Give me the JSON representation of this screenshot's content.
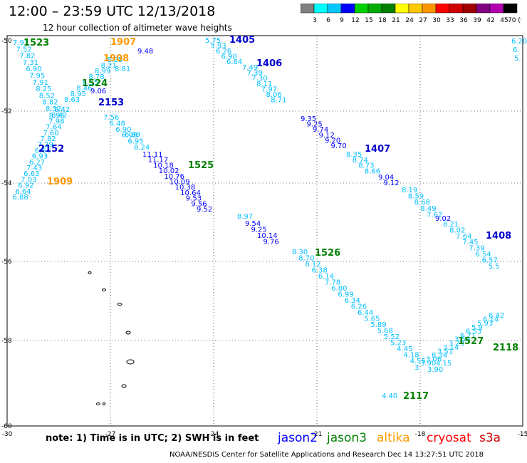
{
  "title": "12:00 – 23:59 UTC 12/13/2018",
  "subtitle": "12 hour collection of altimeter wave heights",
  "color_scale": {
    "ticks": [
      "3",
      "6",
      "9",
      "12",
      "15",
      "18",
      "21",
      "24",
      "27",
      "30",
      "33",
      "36",
      "39",
      "42",
      "45",
      "70 (ft)"
    ],
    "colors": [
      "#808080",
      "#00ffff",
      "#00c8ff",
      "#0000ff",
      "#00d000",
      "#00aa00",
      "#008000",
      "#ffff00",
      "#ffc800",
      "#ff9600",
      "#ff0000",
      "#d00000",
      "#a00000",
      "#800080",
      "#b000b0",
      "#000000"
    ]
  },
  "map": {
    "longitudes": [
      "-30",
      "-27",
      "-24",
      "-21",
      "-18",
      "-15"
    ],
    "latitudes": [
      "-50",
      "-52",
      "-54",
      "-56",
      "-58",
      "-60"
    ]
  },
  "tracks": [
    {
      "color": "#00bfff",
      "labels": [
        "5.75",
        "5.93",
        "6.26",
        "6.90",
        "6.84"
      ]
    },
    {
      "color": "#00bfff",
      "labels": [
        "7.49",
        "7.39",
        "7.30",
        "8.11",
        "7.97",
        "8.06",
        "8.71"
      ]
    },
    {
      "color": "#0000ff",
      "labels": [
        "9.35",
        "9.25",
        "9.74",
        "9.12",
        "9.20",
        "9.70"
      ]
    },
    {
      "color": "#00bfff",
      "labels": [
        "8.35",
        "8.74",
        "8.73",
        "8.66"
      ]
    },
    {
      "color": "#0000ff",
      "labels": [
        "9.04",
        "9.12"
      ]
    },
    {
      "color": "#00bfff",
      "labels": [
        "8.19",
        "8.59",
        "8.68",
        "8.49",
        "7.62"
      ]
    },
    {
      "color": "#0000ff",
      "labels": [
        "9.02"
      ]
    },
    {
      "color": "#00bfff",
      "labels": [
        "8.21",
        "8.02",
        "7.64",
        "7.45",
        "7.39",
        "6.54",
        "6.57",
        "5.5"
      ]
    },
    {
      "color": "#00bfff",
      "labels": [
        "7.56",
        "6.48",
        "6.90",
        "6.99",
        "6.95",
        "8.24"
      ]
    },
    {
      "color": "#0000ff",
      "labels": [
        "11.11",
        "11.17",
        "10.18",
        "10.02",
        "10.76",
        "10.09",
        "10.38",
        "10.64",
        "9.53",
        "9.56",
        "9.52"
      ]
    },
    {
      "color": "#00bfff",
      "labels": [
        "8.97"
      ]
    },
    {
      "color": "#0000ff",
      "labels": [
        "9.54",
        "9.25",
        "10.14",
        "9.76"
      ]
    },
    {
      "color": "#00bfff",
      "labels": [
        "8.30",
        "8.70",
        "8.12",
        "6.38",
        "6.14",
        "7.78",
        "6.80",
        "6.99",
        "6.34",
        "6.26",
        "6.44",
        "5.65",
        "5.89",
        "5.68",
        "5.52",
        "5.23",
        "4.45",
        "4.18",
        "4.55"
      ]
    },
    {
      "color": "#00bfff",
      "labels": [
        "6.42",
        "6.14",
        "5.93",
        "5.9",
        "6.53",
        "6.71",
        "3.59",
        "3.23",
        "3.14",
        "3.51",
        "8.34",
        "3.06",
        "3.90",
        "3."
      ]
    },
    {
      "color": "#00bfff",
      "labels": [
        "3.90",
        "4.15"
      ]
    },
    {
      "color": "#00bfff",
      "labels": [
        "7.93",
        "7.52",
        "7.82",
        "7.31",
        "6.90",
        "7.95",
        "7.91",
        "8.25",
        "8.52",
        "8.82",
        "8.52",
        "8.96"
      ]
    },
    {
      "color": "#00bfff",
      "labels": [
        "8.63",
        "8.95",
        "8.46",
        "8.55",
        "8.78",
        "8.99",
        "8.21",
        "8.25"
      ]
    },
    {
      "color": "#00bfff",
      "labels": [
        "8.42",
        "8.42",
        "7.98",
        "7.64",
        "7.60",
        "7.82",
        "7.29",
        "6.64",
        "6.93",
        "6.27",
        "7.43",
        "6.63",
        "7.03",
        "6.92",
        "6.64",
        "6.88"
      ]
    },
    {
      "color": "#00bfff",
      "labels": [
        "6.20",
        "6.",
        "5."
      ]
    },
    {
      "color": "#00bfff",
      "labels": [
        "4.40"
      ]
    }
  ],
  "extra_values": [
    {
      "text": "9.48",
      "color": "#0000ff"
    },
    {
      "text": "9.06",
      "color": "#0000ff"
    },
    {
      "text": "6.99",
      "color": "#00bfff"
    },
    {
      "text": "8.81",
      "color": "#00bfff"
    }
  ],
  "pass_ids": [
    {
      "id": "1523",
      "color": "#008000"
    },
    {
      "id": "1907",
      "color": "#ff9900"
    },
    {
      "id": "1908",
      "color": "#ff9900"
    },
    {
      "id": "1405",
      "color": "#0000cc"
    },
    {
      "id": "1406",
      "color": "#0000cc"
    },
    {
      "id": "1524",
      "color": "#008000"
    },
    {
      "id": "2153",
      "color": "#0000cc"
    },
    {
      "id": "2152",
      "color": "#0000cc"
    },
    {
      "id": "1525",
      "color": "#008000"
    },
    {
      "id": "1909",
      "color": "#ff9900"
    },
    {
      "id": "1407",
      "color": "#0000cc"
    },
    {
      "id": "1408",
      "color": "#0000cc"
    },
    {
      "id": "1526",
      "color": "#008000"
    },
    {
      "id": "1527",
      "color": "#008000"
    },
    {
      "id": "2118",
      "color": "#008000"
    },
    {
      "id": "2117",
      "color": "#008000"
    }
  ],
  "footer": {
    "note": "note:  1) Time is in UTC;  2) SWH is in feet",
    "satellites": [
      {
        "name": "jason2",
        "color": "#0000ff"
      },
      {
        "name": "jason3",
        "color": "#008000"
      },
      {
        "name": "altika",
        "color": "#ff9900"
      },
      {
        "name": "cryosat",
        "color": "#ff0000"
      },
      {
        "name": "s3a",
        "color": "#d00000"
      }
    ],
    "credit": "NOAA/NESDIS Center for Satellite Applications and Research      Dec 14 13:27:51 UTC 2018"
  }
}
